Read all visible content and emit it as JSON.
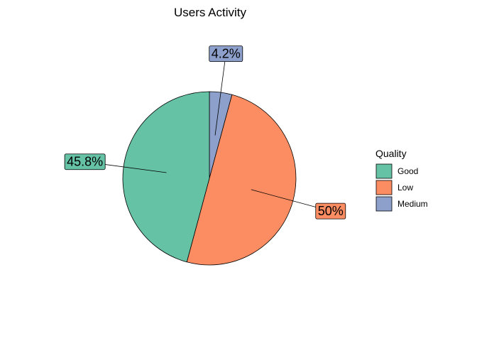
{
  "chart_data": {
    "type": "pie",
    "title": "Users Activity",
    "slices": [
      {
        "category": "Good",
        "value": 45.8,
        "label": "45.8%"
      },
      {
        "category": "Low",
        "value": 50.0,
        "label": "50%"
      },
      {
        "category": "Medium",
        "value": 4.2,
        "label": "4.2%"
      }
    ],
    "legend": {
      "title": "Quality",
      "placement": "right",
      "items": [
        "Good",
        "Low",
        "Medium"
      ]
    },
    "colors": {
      "Good": "#66c2a5",
      "Low": "#fc8d62",
      "Medium": "#8da0cb"
    },
    "grid": false
  }
}
